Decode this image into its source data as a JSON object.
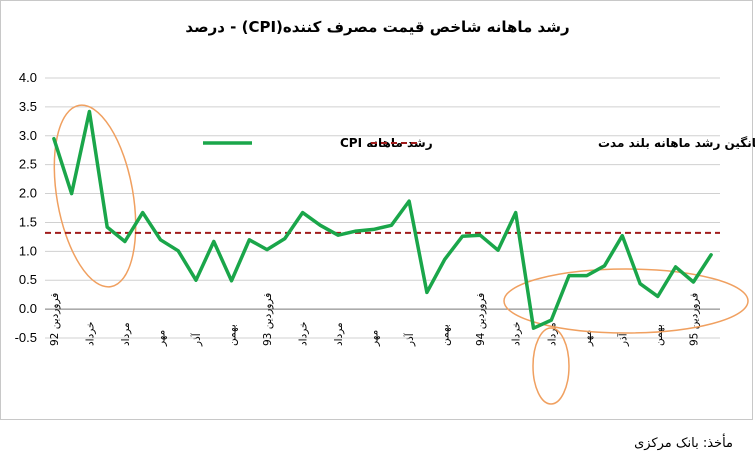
{
  "chart_data": {
    "type": "line",
    "title": "رشد ماهانه شاخص قیمت مصرف کننده(CPI) - درصد",
    "ylim": [
      -0.5,
      4.0
    ],
    "yticks": [
      "4.0",
      "3.5",
      "3.0",
      "2.5",
      "2.0",
      "1.5",
      "1.0",
      "0.5",
      "0.0",
      "-0.5"
    ],
    "y_values_ticks": [
      4.0,
      3.5,
      3.0,
      2.5,
      2.0,
      1.5,
      1.0,
      0.5,
      0.0,
      -0.5
    ],
    "x_tick_labels": [
      "فروردین 92",
      "خرداد",
      "مرداد",
      "مهر",
      "آذر",
      "بهمن",
      "فروردین 93",
      "خرداد",
      "مرداد",
      "مهر",
      "آذر",
      "بهمن",
      "فروردین 94",
      "خرداد",
      "مرداد",
      "مهر",
      "آذر",
      "بهمن",
      "فروردین 95"
    ],
    "grid": "horizontal",
    "legend_position": "top",
    "series": [
      {
        "name": "رشد ماهانه CPI",
        "color": "#1aa64a",
        "style": "solid",
        "values": [
          2.95,
          2.0,
          3.42,
          1.42,
          1.17,
          1.67,
          1.2,
          1.01,
          0.5,
          1.17,
          0.49,
          1.2,
          1.03,
          1.22,
          1.67,
          1.45,
          1.28,
          1.35,
          1.38,
          1.45,
          1.87,
          0.29,
          0.86,
          1.26,
          1.28,
          1.02,
          1.67,
          -0.33,
          -0.19,
          0.58,
          0.58,
          0.75,
          1.27,
          0.44,
          0.22,
          0.73,
          0.47,
          0.94
        ]
      },
      {
        "name": "میانگین رشد ماهانه بلند مدت",
        "color": "#a01c1c",
        "style": "dashed",
        "values": [
          1.32
        ]
      }
    ]
  },
  "source_text": "مأخذ: بانک مرکزی",
  "highlight_color": "#f0a060"
}
